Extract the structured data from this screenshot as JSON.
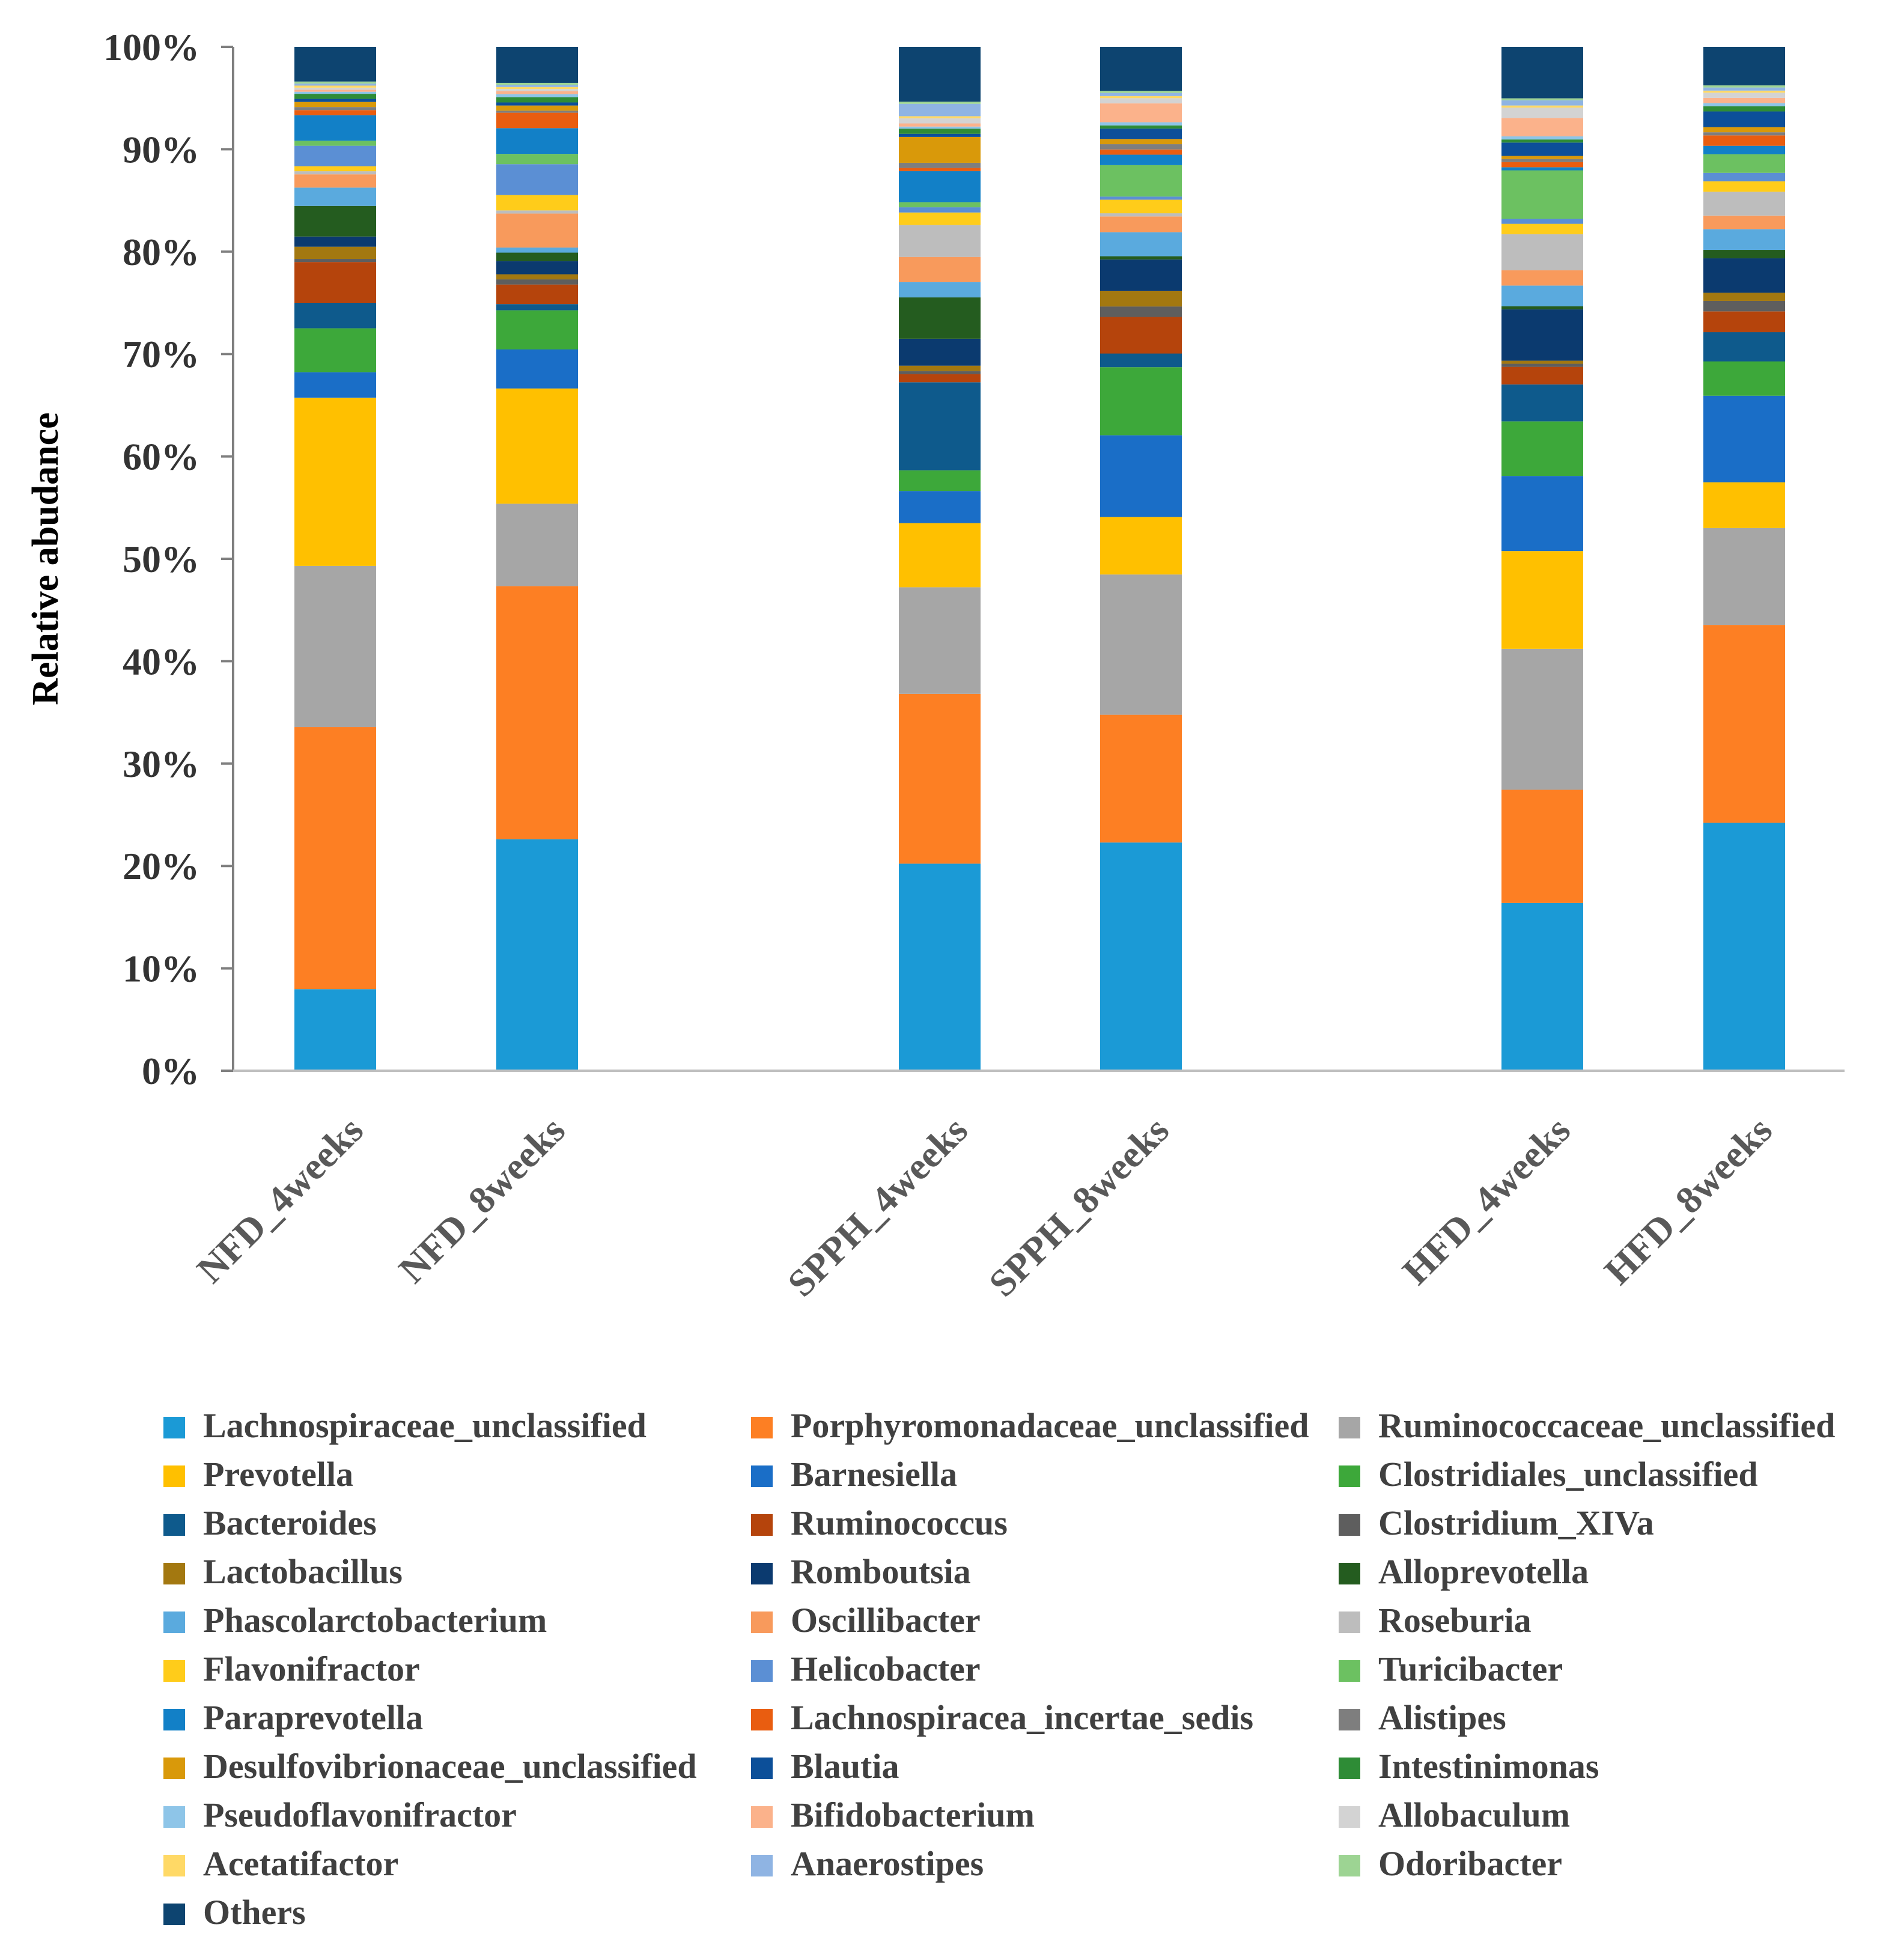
{
  "chart_data": {
    "type": "bar",
    "stacked": true,
    "title": "",
    "xlabel": "",
    "ylabel": "Relative  abudance",
    "ylim": [
      0,
      100
    ],
    "yticks": [
      "0%",
      "10%",
      "20%",
      "30%",
      "40%",
      "50%",
      "60%",
      "70%",
      "80%",
      "90%",
      "100%"
    ],
    "categories": [
      "NFD_4weeks",
      "NFD_8weeks",
      "SPPH_4weeks",
      "SPPH_8weeks",
      "HFD_4weeks",
      "HFD_8weeks"
    ],
    "legend_position": "bottom",
    "series": [
      {
        "name": "Lachnospiraceae_unclassified",
        "color": "#1b9ad6",
        "values": [
          8.0,
          22.5,
          20.0,
          21.8,
          16.3,
          23.8
        ]
      },
      {
        "name": "Porphyromonadaceae_unclassified",
        "color": "#fd7f23",
        "values": [
          25.7,
          24.6,
          16.4,
          12.2,
          11.0,
          19.0
        ]
      },
      {
        "name": "Ruminococcaceae_unclassified",
        "color": "#a6a6a6",
        "values": [
          15.8,
          8.0,
          10.3,
          13.4,
          13.7,
          9.3
        ]
      },
      {
        "name": "Prevotella",
        "color": "#ffc000",
        "values": [
          16.5,
          11.2,
          6.2,
          5.5,
          9.5,
          4.4
        ]
      },
      {
        "name": "Barnesiella",
        "color": "#1a6ec7",
        "values": [
          2.5,
          3.8,
          3.1,
          7.8,
          7.3,
          8.3
        ]
      },
      {
        "name": "Clostridiales_unclassified",
        "color": "#3da83a",
        "values": [
          4.3,
          3.8,
          2.0,
          6.5,
          5.3,
          3.3
        ]
      },
      {
        "name": "Bacteroides",
        "color": "#0e5a8c",
        "values": [
          2.5,
          0.6,
          8.5,
          1.3,
          3.6,
          2.8
        ]
      },
      {
        "name": "Ruminococcus",
        "color": "#b5440c",
        "values": [
          4.0,
          1.9,
          0.8,
          3.5,
          1.7,
          2.0
        ]
      },
      {
        "name": "Clostridium_XIVa",
        "color": "#5e5e5e",
        "values": [
          0.3,
          0.5,
          0.3,
          1.0,
          0.3,
          1.0
        ]
      },
      {
        "name": "Lactobacillus",
        "color": "#a37810",
        "values": [
          1.2,
          0.5,
          0.5,
          1.5,
          0.3,
          0.8
        ]
      },
      {
        "name": "Romboutsia",
        "color": "#0b3a6f",
        "values": [
          1.0,
          1.3,
          2.6,
          3.0,
          5.0,
          3.3
        ]
      },
      {
        "name": "Alloprevotella",
        "color": "#245c1f",
        "values": [
          3.0,
          0.8,
          4.0,
          0.3,
          0.3,
          0.8
        ]
      },
      {
        "name": "Phascolarctobacterium",
        "color": "#5aaade",
        "values": [
          1.8,
          0.5,
          1.5,
          2.3,
          2.0,
          2.0
        ]
      },
      {
        "name": "Oscillibacter",
        "color": "#f89a5c",
        "values": [
          1.3,
          3.3,
          2.4,
          1.5,
          1.5,
          1.3
        ]
      },
      {
        "name": "Roseburia",
        "color": "#bdbdbd",
        "values": [
          0.3,
          0.3,
          3.1,
          0.3,
          3.5,
          2.3
        ]
      },
      {
        "name": "Flavonifractor",
        "color": "#ffcc1a",
        "values": [
          0.5,
          1.5,
          1.2,
          1.3,
          1.0,
          1.0
        ]
      },
      {
        "name": "Helicobacter",
        "color": "#5b8fd4",
        "values": [
          2.0,
          3.0,
          0.5,
          0.3,
          0.5,
          0.8
        ]
      },
      {
        "name": "Turicibacter",
        "color": "#6cc161",
        "values": [
          0.5,
          1.0,
          0.5,
          3.0,
          4.7,
          1.8
        ]
      },
      {
        "name": "Paraprevotella",
        "color": "#1280c7",
        "values": [
          2.5,
          2.5,
          3.0,
          1.0,
          0.3,
          0.8
        ]
      },
      {
        "name": "Lachnospiracea_incertae_sedis",
        "color": "#e95d10",
        "values": [
          0.5,
          1.5,
          0.3,
          0.5,
          0.5,
          1.0
        ]
      },
      {
        "name": "Alistipes",
        "color": "#7e7e7e",
        "values": [
          0.3,
          0.2,
          0.5,
          0.5,
          0.3,
          0.3
        ]
      },
      {
        "name": "Desulfovibrionaceae_unclassified",
        "color": "#d9990a",
        "values": [
          0.5,
          0.5,
          2.5,
          0.5,
          0.3,
          0.5
        ]
      },
      {
        "name": "Blautia",
        "color": "#0c4f99",
        "values": [
          0.3,
          0.3,
          0.3,
          1.0,
          1.3,
          1.5
        ]
      },
      {
        "name": "Intestinimonas",
        "color": "#2e8c36",
        "values": [
          0.5,
          0.5,
          0.5,
          0.3,
          0.3,
          0.5
        ]
      },
      {
        "name": "Pseudoflavonifractor",
        "color": "#8ec5e8",
        "values": [
          0.2,
          0.3,
          0.2,
          0.3,
          0.3,
          0.3
        ]
      },
      {
        "name": "Bifidobacterium",
        "color": "#fbb28b",
        "values": [
          0.2,
          0.3,
          0.3,
          1.8,
          1.8,
          0.5
        ]
      },
      {
        "name": "Allobaculum",
        "color": "#d3d3d3",
        "values": [
          0.2,
          0.2,
          0.5,
          0.5,
          1.0,
          0.5
        ]
      },
      {
        "name": "Acetatifactor",
        "color": "#ffd966",
        "values": [
          0.2,
          0.2,
          0.2,
          0.2,
          0.2,
          0.2
        ]
      },
      {
        "name": "Anaerostipes",
        "color": "#8fb4e3",
        "values": [
          0.2,
          0.2,
          1.2,
          0.3,
          0.5,
          0.3
        ]
      },
      {
        "name": "Odoribacter",
        "color": "#9dd493",
        "values": [
          0.2,
          0.2,
          0.2,
          0.2,
          0.2,
          0.2
        ]
      },
      {
        "name": "Others",
        "color": "#0d4470",
        "values": [
          3.4,
          3.5,
          5.3,
          4.2,
          5.0,
          3.7
        ]
      }
    ]
  }
}
